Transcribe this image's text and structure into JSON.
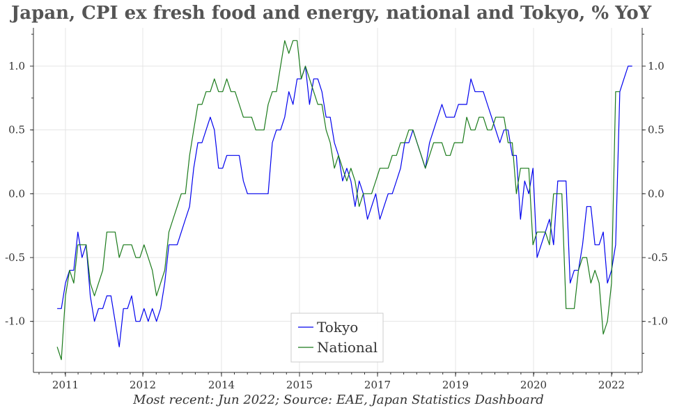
{
  "chart_data": {
    "type": "line",
    "title": "Japan, CPI ex fresh food and energy, national and Tokyo,  % YoY",
    "footer": "Most recent: Jun 2022; Source: EAE, Japan Statistics Dashboard",
    "xlabel": "",
    "ylabel": "",
    "x_ticks": [
      "2011",
      "2012",
      "2014",
      "2015",
      "2017",
      "2019",
      "2020",
      "2022"
    ],
    "y_ticks": [
      "-1.0",
      "-0.5",
      "0.0",
      "0.5",
      "1.0"
    ],
    "ylim": [
      -1.4,
      1.3
    ],
    "grid": true,
    "legend_position": "bottom-center",
    "series": [
      {
        "name": "Tokyo",
        "color": "#0000ee",
        "points": [
          [
            "2010-11",
            -0.9
          ],
          [
            "2010-12",
            -0.9
          ],
          [
            "2011-01",
            -0.7
          ],
          [
            "2011-02",
            -0.6
          ],
          [
            "2011-03",
            -0.6
          ],
          [
            "2011-04",
            -0.3
          ],
          [
            "2011-05",
            -0.5
          ],
          [
            "2011-06",
            -0.4
          ],
          [
            "2011-07",
            -0.8
          ],
          [
            "2011-08",
            -1.0
          ],
          [
            "2011-09",
            -0.9
          ],
          [
            "2011-10",
            -0.9
          ],
          [
            "2011-11",
            -0.8
          ],
          [
            "2011-12",
            -0.8
          ],
          [
            "2012-01",
            -1.0
          ],
          [
            "2012-02",
            -1.2
          ],
          [
            "2012-03",
            -0.9
          ],
          [
            "2012-04",
            -0.9
          ],
          [
            "2012-05",
            -0.8
          ],
          [
            "2012-06",
            -1.0
          ],
          [
            "2012-07",
            -1.0
          ],
          [
            "2012-08",
            -0.9
          ],
          [
            "2012-09",
            -1.0
          ],
          [
            "2012-10",
            -0.9
          ],
          [
            "2012-11",
            -1.0
          ],
          [
            "2012-12",
            -0.9
          ],
          [
            "2013-01",
            -0.7
          ],
          [
            "2013-02",
            -0.4
          ],
          [
            "2013-03",
            -0.4
          ],
          [
            "2013-04",
            -0.4
          ],
          [
            "2013-05",
            -0.3
          ],
          [
            "2013-06",
            -0.2
          ],
          [
            "2013-07",
            -0.1
          ],
          [
            "2013-08",
            0.2
          ],
          [
            "2013-09",
            0.4
          ],
          [
            "2013-10",
            0.4
          ],
          [
            "2013-11",
            0.5
          ],
          [
            "2013-12",
            0.6
          ],
          [
            "2014-01",
            0.5
          ],
          [
            "2014-02",
            0.2
          ],
          [
            "2014-03",
            0.2
          ],
          [
            "2014-04",
            0.3
          ],
          [
            "2014-05",
            0.3
          ],
          [
            "2014-06",
            0.3
          ],
          [
            "2014-07",
            0.3
          ],
          [
            "2014-08",
            0.1
          ],
          [
            "2014-09",
            0.0
          ],
          [
            "2014-10",
            0.0
          ],
          [
            "2014-11",
            0.0
          ],
          [
            "2014-12",
            0.0
          ],
          [
            "2015-01",
            0.0
          ],
          [
            "2015-02",
            0.0
          ],
          [
            "2015-03",
            0.4
          ],
          [
            "2015-04",
            0.5
          ],
          [
            "2015-05",
            0.5
          ],
          [
            "2015-06",
            0.6
          ],
          [
            "2015-07",
            0.8
          ],
          [
            "2015-08",
            0.7
          ],
          [
            "2015-09",
            0.9
          ],
          [
            "2015-10",
            0.9
          ],
          [
            "2015-11",
            1.0
          ],
          [
            "2015-12",
            0.7
          ],
          [
            "2016-01",
            0.9
          ],
          [
            "2016-02",
            0.9
          ],
          [
            "2016-03",
            0.8
          ],
          [
            "2016-04",
            0.6
          ],
          [
            "2016-05",
            0.6
          ],
          [
            "2016-06",
            0.4
          ],
          [
            "2016-07",
            0.3
          ],
          [
            "2016-08",
            0.1
          ],
          [
            "2016-09",
            0.2
          ],
          [
            "2016-10",
            0.1
          ],
          [
            "2016-11",
            -0.1
          ],
          [
            "2016-12",
            0.1
          ],
          [
            "2017-01",
            0.0
          ],
          [
            "2017-02",
            -0.2
          ],
          [
            "2017-03",
            -0.1
          ],
          [
            "2017-04",
            -0.0
          ],
          [
            "2017-05",
            -0.2
          ],
          [
            "2017-06",
            -0.1
          ],
          [
            "2017-07",
            0.0
          ],
          [
            "2017-08",
            0.0
          ],
          [
            "2017-09",
            0.1
          ],
          [
            "2017-10",
            0.2
          ],
          [
            "2017-11",
            0.4
          ],
          [
            "2017-12",
            0.4
          ],
          [
            "2018-01",
            0.5
          ],
          [
            "2018-02",
            0.4
          ],
          [
            "2018-03",
            0.3
          ],
          [
            "2018-04",
            0.2
          ],
          [
            "2018-05",
            0.4
          ],
          [
            "2018-06",
            0.5
          ],
          [
            "2018-07",
            0.6
          ],
          [
            "2018-08",
            0.7
          ],
          [
            "2018-09",
            0.6
          ],
          [
            "2018-10",
            0.6
          ],
          [
            "2018-11",
            0.6
          ],
          [
            "2018-12",
            0.7
          ],
          [
            "2019-01",
            0.7
          ],
          [
            "2019-02",
            0.7
          ],
          [
            "2019-03",
            0.9
          ],
          [
            "2019-04",
            0.8
          ],
          [
            "2019-05",
            0.8
          ],
          [
            "2019-06",
            0.8
          ],
          [
            "2019-07",
            0.7
          ],
          [
            "2019-08",
            0.6
          ],
          [
            "2019-09",
            0.5
          ],
          [
            "2019-10",
            0.4
          ],
          [
            "2019-11",
            0.5
          ],
          [
            "2019-12",
            0.5
          ],
          [
            "2020-01",
            0.3
          ],
          [
            "2020-02",
            0.3
          ],
          [
            "2020-03",
            -0.2
          ],
          [
            "2020-04",
            0.1
          ],
          [
            "2020-05",
            0.0
          ],
          [
            "2020-06",
            0.2
          ],
          [
            "2020-07",
            -0.5
          ],
          [
            "2020-08",
            -0.4
          ],
          [
            "2020-09",
            -0.3
          ],
          [
            "2020-10",
            -0.2
          ],
          [
            "2020-11",
            -0.4
          ],
          [
            "2020-12",
            0.1
          ],
          [
            "2021-01",
            0.1
          ],
          [
            "2021-02",
            0.1
          ],
          [
            "2021-03",
            -0.7
          ],
          [
            "2021-04",
            -0.6
          ],
          [
            "2021-05",
            -0.6
          ],
          [
            "2021-06",
            -0.4
          ],
          [
            "2021-07",
            -0.1
          ],
          [
            "2021-08",
            -0.1
          ],
          [
            "2021-09",
            -0.4
          ],
          [
            "2021-10",
            -0.4
          ],
          [
            "2021-11",
            -0.3
          ],
          [
            "2021-12",
            -0.7
          ],
          [
            "2022-01",
            -0.6
          ],
          [
            "2022-02",
            -0.4
          ],
          [
            "2022-03",
            0.8
          ],
          [
            "2022-04",
            0.9
          ],
          [
            "2022-05",
            1.0
          ],
          [
            "2022-06",
            1.0
          ]
        ]
      },
      {
        "name": "National",
        "color": "#1a7a1a",
        "points": [
          [
            "2010-11",
            -1.2
          ],
          [
            "2010-12",
            -1.3
          ],
          [
            "2011-01",
            -0.8
          ],
          [
            "2011-02",
            -0.6
          ],
          [
            "2011-03",
            -0.7
          ],
          [
            "2011-04",
            -0.4
          ],
          [
            "2011-05",
            -0.4
          ],
          [
            "2011-06",
            -0.4
          ],
          [
            "2011-07",
            -0.7
          ],
          [
            "2011-08",
            -0.8
          ],
          [
            "2011-09",
            -0.7
          ],
          [
            "2011-10",
            -0.6
          ],
          [
            "2011-11",
            -0.3
          ],
          [
            "2011-12",
            -0.3
          ],
          [
            "2012-01",
            -0.3
          ],
          [
            "2012-02",
            -0.5
          ],
          [
            "2012-03",
            -0.4
          ],
          [
            "2012-04",
            -0.4
          ],
          [
            "2012-05",
            -0.4
          ],
          [
            "2012-06",
            -0.5
          ],
          [
            "2012-07",
            -0.5
          ],
          [
            "2012-08",
            -0.4
          ],
          [
            "2012-09",
            -0.5
          ],
          [
            "2012-10",
            -0.6
          ],
          [
            "2012-11",
            -0.8
          ],
          [
            "2012-12",
            -0.7
          ],
          [
            "2013-01",
            -0.6
          ],
          [
            "2013-02",
            -0.3
          ],
          [
            "2013-03",
            -0.2
          ],
          [
            "2013-04",
            -0.1
          ],
          [
            "2013-05",
            0.0
          ],
          [
            "2013-06",
            0.0
          ],
          [
            "2013-07",
            0.3
          ],
          [
            "2013-08",
            0.5
          ],
          [
            "2013-09",
            0.7
          ],
          [
            "2013-10",
            0.7
          ],
          [
            "2013-11",
            0.8
          ],
          [
            "2013-12",
            0.8
          ],
          [
            "2014-01",
            0.9
          ],
          [
            "2014-02",
            0.8
          ],
          [
            "2014-03",
            0.8
          ],
          [
            "2014-04",
            0.9
          ],
          [
            "2014-05",
            0.8
          ],
          [
            "2014-06",
            0.8
          ],
          [
            "2014-07",
            0.7
          ],
          [
            "2014-08",
            0.6
          ],
          [
            "2014-09",
            0.6
          ],
          [
            "2014-10",
            0.6
          ],
          [
            "2014-11",
            0.5
          ],
          [
            "2014-12",
            0.5
          ],
          [
            "2015-01",
            0.5
          ],
          [
            "2015-02",
            0.7
          ],
          [
            "2015-03",
            0.8
          ],
          [
            "2015-04",
            0.8
          ],
          [
            "2015-05",
            1.0
          ],
          [
            "2015-06",
            1.2
          ],
          [
            "2015-07",
            1.1
          ],
          [
            "2015-08",
            1.2
          ],
          [
            "2015-09",
            1.2
          ],
          [
            "2015-10",
            0.9
          ],
          [
            "2015-11",
            1.0
          ],
          [
            "2015-12",
            0.9
          ],
          [
            "2016-01",
            0.8
          ],
          [
            "2016-02",
            0.7
          ],
          [
            "2016-03",
            0.7
          ],
          [
            "2016-04",
            0.5
          ],
          [
            "2016-05",
            0.4
          ],
          [
            "2016-06",
            0.2
          ],
          [
            "2016-07",
            0.3
          ],
          [
            "2016-08",
            0.2
          ],
          [
            "2016-09",
            0.1
          ],
          [
            "2016-10",
            0.2
          ],
          [
            "2016-11",
            0.1
          ],
          [
            "2016-12",
            -0.1
          ],
          [
            "2017-01",
            0.0
          ],
          [
            "2017-02",
            0.0
          ],
          [
            "2017-03",
            0.0
          ],
          [
            "2017-04",
            0.1
          ],
          [
            "2017-05",
            0.2
          ],
          [
            "2017-06",
            0.2
          ],
          [
            "2017-07",
            0.2
          ],
          [
            "2017-08",
            0.3
          ],
          [
            "2017-09",
            0.3
          ],
          [
            "2017-10",
            0.4
          ],
          [
            "2017-11",
            0.4
          ],
          [
            "2017-12",
            0.5
          ],
          [
            "2018-01",
            0.5
          ],
          [
            "2018-02",
            0.4
          ],
          [
            "2018-03",
            0.3
          ],
          [
            "2018-04",
            0.2
          ],
          [
            "2018-05",
            0.3
          ],
          [
            "2018-06",
            0.4
          ],
          [
            "2018-07",
            0.4
          ],
          [
            "2018-08",
            0.4
          ],
          [
            "2018-09",
            0.3
          ],
          [
            "2018-10",
            0.3
          ],
          [
            "2018-11",
            0.4
          ],
          [
            "2018-12",
            0.4
          ],
          [
            "2019-01",
            0.4
          ],
          [
            "2019-02",
            0.6
          ],
          [
            "2019-03",
            0.5
          ],
          [
            "2019-04",
            0.5
          ],
          [
            "2019-05",
            0.6
          ],
          [
            "2019-06",
            0.6
          ],
          [
            "2019-07",
            0.5
          ],
          [
            "2019-08",
            0.5
          ],
          [
            "2019-09",
            0.6
          ],
          [
            "2019-10",
            0.6
          ],
          [
            "2019-11",
            0.6
          ],
          [
            "2019-12",
            0.4
          ],
          [
            "2020-01",
            0.4
          ],
          [
            "2020-02",
            0.0
          ],
          [
            "2020-03",
            0.2
          ],
          [
            "2020-04",
            0.2
          ],
          [
            "2020-05",
            0.2
          ],
          [
            "2020-06",
            -0.4
          ],
          [
            "2020-07",
            -0.3
          ],
          [
            "2020-08",
            -0.3
          ],
          [
            "2020-09",
            -0.3
          ],
          [
            "2020-10",
            -0.4
          ],
          [
            "2020-11",
            0.0
          ],
          [
            "2020-12",
            0.0
          ],
          [
            "2021-01",
            0.0
          ],
          [
            "2021-02",
            -0.9
          ],
          [
            "2021-03",
            -0.9
          ],
          [
            "2021-04",
            -0.9
          ],
          [
            "2021-05",
            -0.6
          ],
          [
            "2021-06",
            -0.5
          ],
          [
            "2021-07",
            -0.5
          ],
          [
            "2021-08",
            -0.7
          ],
          [
            "2021-09",
            -0.6
          ],
          [
            "2021-10",
            -0.7
          ],
          [
            "2021-11",
            -1.1
          ],
          [
            "2021-12",
            -1.0
          ],
          [
            "2022-01",
            -0.7
          ],
          [
            "2022-02",
            0.8
          ],
          [
            "2022-03",
            0.8
          ]
        ]
      }
    ]
  }
}
